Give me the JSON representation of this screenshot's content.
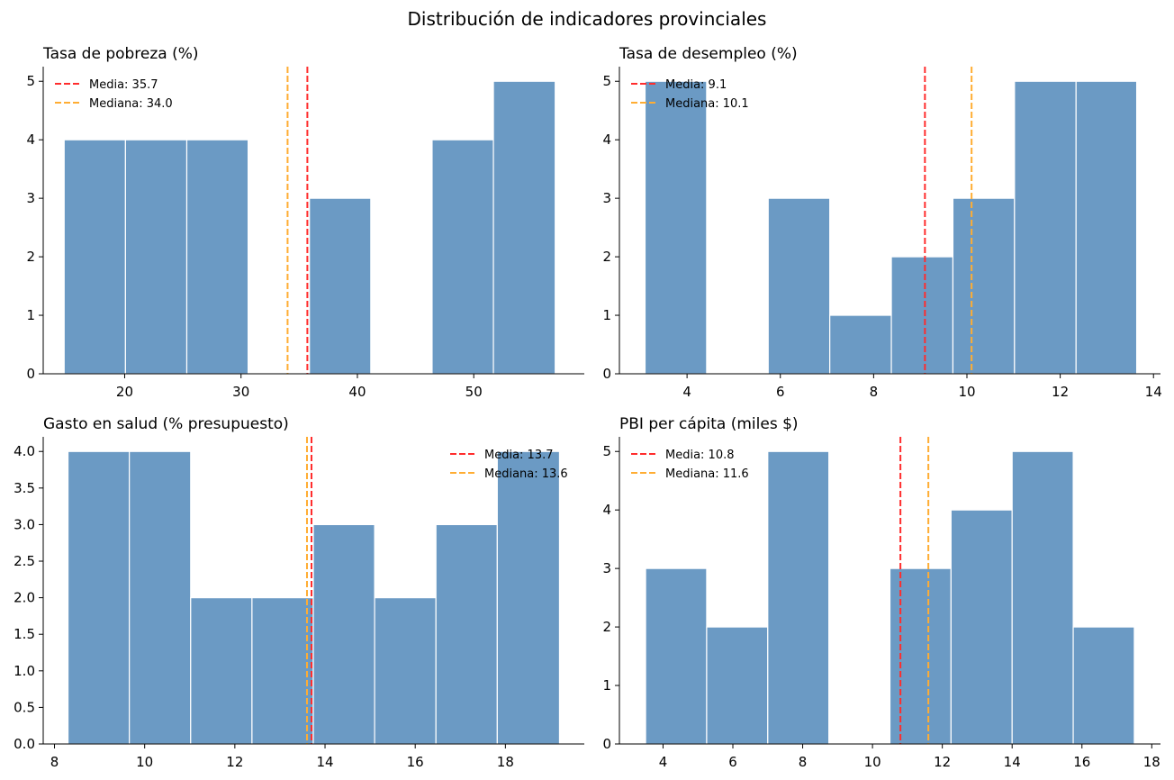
{
  "figure": {
    "title": "Distribución de indicadores provinciales"
  },
  "colors": {
    "bar_fill": "#6b9ac4",
    "bar_edge": "#ffffff",
    "mean_line": "#ff2d2d",
    "median_line": "#ffad33"
  },
  "chart_data": [
    {
      "type": "bar",
      "title": "Tasa de pobreza (%)",
      "xlabel": "",
      "ylabel": "",
      "xlim": [
        13.0,
        59.5
      ],
      "ylim": [
        0,
        5.25
      ],
      "xticks": [
        20,
        30,
        40,
        50
      ],
      "yticks": [
        0,
        1,
        2,
        3,
        4,
        5
      ],
      "bins": [
        14.8,
        20.07,
        25.34,
        30.61,
        35.88,
        41.15,
        46.42,
        51.69,
        57.0
      ],
      "counts": [
        4,
        4,
        4,
        0,
        3,
        0,
        4,
        5
      ],
      "mean": 35.7,
      "median": 34.0,
      "legend": {
        "position": "upper left",
        "mean_label": "Media: 35.7",
        "median_label": "Mediana: 34.0"
      },
      "spines": "left-bottom"
    },
    {
      "type": "bar",
      "title": "Tasa de desempleo (%)",
      "xlabel": "",
      "ylabel": "",
      "xlim": [
        2.55,
        14.15
      ],
      "ylim": [
        0,
        5.25
      ],
      "xticks": [
        4,
        6,
        8,
        10,
        12,
        14
      ],
      "yticks": [
        0,
        1,
        2,
        3,
        4,
        5
      ],
      "bins": [
        3.1,
        4.42,
        5.74,
        7.06,
        8.38,
        9.7,
        11.02,
        12.34,
        13.64
      ],
      "counts": [
        5,
        0,
        3,
        1,
        2,
        3,
        5,
        5
      ],
      "mean": 9.1,
      "median": 10.1,
      "legend": {
        "position": "upper left",
        "mean_label": "Media: 9.1",
        "median_label": "Mediana: 10.1"
      },
      "spines": "left-bottom"
    },
    {
      "type": "bar",
      "title": "Gasto en salud (% presupuesto)",
      "xlabel": "",
      "ylabel": "",
      "xlim": [
        7.75,
        19.75
      ],
      "ylim": [
        0,
        4.2
      ],
      "xticks": [
        8,
        10,
        12,
        14,
        16,
        18
      ],
      "yticks": [
        0.0,
        0.5,
        1.0,
        1.5,
        2.0,
        2.5,
        3.0,
        3.5,
        4.0
      ],
      "ytick_labels": [
        "0.0",
        "0.5",
        "1.0",
        "1.5",
        "2.0",
        "2.5",
        "3.0",
        "3.5",
        "4.0"
      ],
      "bins": [
        8.3,
        9.66,
        11.02,
        12.38,
        13.74,
        15.1,
        16.46,
        17.82,
        19.2
      ],
      "counts": [
        4,
        4,
        2,
        2,
        3,
        2,
        3,
        4
      ],
      "mean": 13.7,
      "median": 13.6,
      "legend": {
        "position": "upper right",
        "mean_label": "Media: 13.7",
        "median_label": "Mediana: 13.6"
      },
      "spines": "left-bottom"
    },
    {
      "type": "bar",
      "title": "PBI per cápita (miles $)",
      "xlabel": "",
      "ylabel": "",
      "xlim": [
        2.75,
        18.25
      ],
      "ylim": [
        0,
        5.25
      ],
      "xticks": [
        4,
        6,
        8,
        10,
        12,
        14,
        16,
        18
      ],
      "yticks": [
        0,
        1,
        2,
        3,
        4,
        5
      ],
      "bins": [
        3.5,
        5.25,
        7.0,
        8.75,
        10.5,
        12.25,
        14.0,
        15.75,
        17.5
      ],
      "counts": [
        3,
        2,
        5,
        0,
        3,
        4,
        5,
        2
      ],
      "mean": 10.8,
      "median": 11.6,
      "legend": {
        "position": "upper left",
        "mean_label": "Media: 10.8",
        "median_label": "Mediana: 11.6"
      },
      "spines": "left-bottom"
    }
  ]
}
